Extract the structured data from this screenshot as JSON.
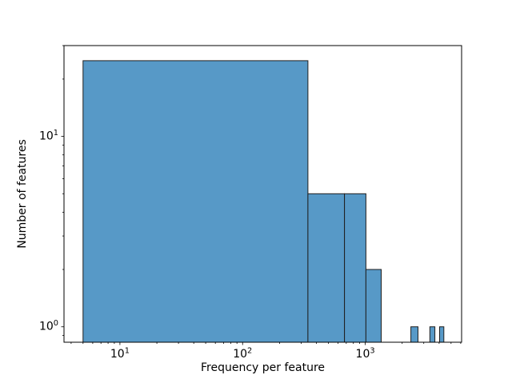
{
  "figure": {
    "background": "#ffffff"
  },
  "chart_data": {
    "type": "histogram",
    "title": "",
    "xlabel": "Frequency per feature",
    "ylabel": "Number of features",
    "xscale": "log",
    "yscale": "log",
    "grid": false,
    "legend": null,
    "bar_fill": "#5799c7",
    "bar_edge": "#1f1f1f",
    "bin_edges": [
      5,
      340.8,
      676.5,
      1012.3,
      1348.1,
      1683.8,
      2019.6,
      2355.4,
      2691.2,
      3026.9,
      3362.7,
      3698.5,
      4034.2,
      4370
    ],
    "counts": [
      25,
      5,
      5,
      2,
      0,
      0,
      0,
      1,
      0,
      0,
      1,
      0,
      1
    ],
    "xlim": [
      3.5,
      6100
    ],
    "ylim": [
      0.83,
      30
    ],
    "x_major_ticks": [
      {
        "value": 10,
        "mantissa": "10",
        "exponent": "1"
      },
      {
        "value": 100,
        "mantissa": "10",
        "exponent": "2"
      },
      {
        "value": 1000,
        "mantissa": "10",
        "exponent": "3"
      }
    ],
    "y_major_ticks": [
      {
        "value": 1,
        "mantissa": "10",
        "exponent": "0"
      },
      {
        "value": 10,
        "mantissa": "10",
        "exponent": "1"
      }
    ]
  }
}
